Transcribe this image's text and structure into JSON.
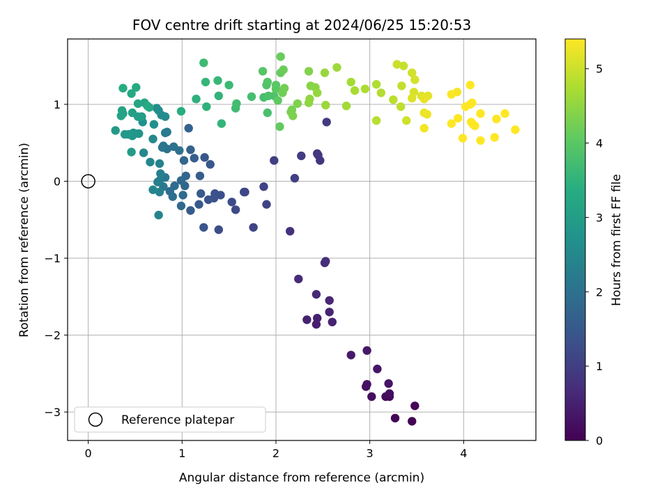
{
  "chart_data": {
    "type": "scatter",
    "title": "FOV centre drift starting at 2024/06/25 15:20:53",
    "xlabel": "Angular distance from reference (arcmin)",
    "ylabel": "Rotation from reference (arcmin)",
    "xlim": [
      -0.22,
      4.77
    ],
    "ylim": [
      -3.37,
      1.85
    ],
    "xticks": [
      0,
      1,
      2,
      3,
      4
    ],
    "xtick_labels": [
      "0",
      "1",
      "2",
      "3",
      "4"
    ],
    "yticks": [
      -3,
      -2,
      -1,
      0,
      1
    ],
    "ytick_labels": [
      "−3",
      "−2",
      "−1",
      "0",
      "1"
    ],
    "grid": true,
    "colormap": "viridis",
    "colorbar": {
      "label": "Hours from first FF file",
      "range": [
        0,
        5.4
      ],
      "ticks": [
        0,
        1,
        2,
        3,
        4,
        5
      ],
      "tick_labels": [
        "0",
        "1",
        "2",
        "3",
        "4",
        "5"
      ]
    },
    "legend": {
      "position": "lower-left",
      "entries": [
        "Reference platepar"
      ]
    },
    "reference_point": {
      "x": 0,
      "y": 0
    },
    "points": [
      [
        3.45,
        -3.12,
        0.02
      ],
      [
        3.27,
        -3.08,
        0.05
      ],
      [
        3.48,
        -2.92,
        0.09
      ],
      [
        3.17,
        -2.8,
        0.12
      ],
      [
        3.21,
        -2.8,
        0.15
      ],
      [
        3.02,
        -2.8,
        0.18
      ],
      [
        3.21,
        -2.76,
        0.21
      ],
      [
        2.96,
        -2.67,
        0.24
      ],
      [
        2.97,
        -2.64,
        0.27
      ],
      [
        3.2,
        -2.63,
        0.3
      ],
      [
        3.08,
        -2.44,
        0.33
      ],
      [
        2.97,
        -2.2,
        0.36
      ],
      [
        2.8,
        -2.26,
        0.39
      ],
      [
        2.43,
        -1.86,
        0.45
      ],
      [
        2.44,
        -1.78,
        0.48
      ],
      [
        2.33,
        -1.8,
        0.51
      ],
      [
        2.6,
        -1.83,
        0.54
      ],
      [
        2.57,
        -1.7,
        0.57
      ],
      [
        2.57,
        -1.55,
        0.6
      ],
      [
        2.43,
        -1.47,
        0.63
      ],
      [
        2.24,
        -1.27,
        0.66
      ],
      [
        2.52,
        -1.06,
        0.69
      ],
      [
        2.53,
        -1.04,
        0.72
      ],
      [
        2.15,
        -0.65,
        0.78
      ],
      [
        2.47,
        0.27,
        0.84
      ],
      [
        2.44,
        0.36,
        0.87
      ],
      [
        2.45,
        0.34,
        0.9
      ],
      [
        2.54,
        0.77,
        0.93
      ],
      [
        2.27,
        0.33,
        0.96
      ],
      [
        1.98,
        0.27,
        1.0
      ],
      [
        2.2,
        0.04,
        1.03
      ],
      [
        1.9,
        -0.3,
        1.06
      ],
      [
        1.87,
        -0.07,
        1.09
      ],
      [
        1.76,
        -0.6,
        1.12
      ],
      [
        1.67,
        -0.14,
        1.15
      ],
      [
        1.66,
        -0.14,
        1.18
      ],
      [
        1.57,
        -0.37,
        1.21
      ],
      [
        1.53,
        -0.27,
        1.24
      ],
      [
        1.39,
        -0.63,
        1.27
      ],
      [
        1.41,
        -0.18,
        1.3
      ],
      [
        1.35,
        -0.16,
        1.33
      ],
      [
        1.34,
        -0.22,
        1.36
      ],
      [
        1.28,
        -0.24,
        1.39
      ],
      [
        1.23,
        -0.6,
        1.42
      ],
      [
        1.3,
        0.22,
        1.45
      ],
      [
        1.24,
        0.31,
        1.48
      ],
      [
        1.18,
        -0.3,
        1.51
      ],
      [
        1.2,
        -0.16,
        1.54
      ],
      [
        1.09,
        -0.38,
        1.57
      ],
      [
        1.19,
        0.07,
        1.6
      ],
      [
        1.13,
        0.3,
        1.63
      ],
      [
        1.09,
        0.41,
        1.66
      ],
      [
        1.07,
        0.69,
        1.69
      ],
      [
        1.04,
        0.07,
        1.72
      ],
      [
        1.03,
        -0.06,
        1.75
      ],
      [
        1.02,
        0.27,
        1.78
      ],
      [
        0.99,
        -0.32,
        1.81
      ],
      [
        0.99,
        0.01,
        1.84
      ],
      [
        1.01,
        -0.18,
        1.87
      ],
      [
        0.92,
        -0.06,
        1.9
      ],
      [
        0.87,
        -0.13,
        1.93
      ],
      [
        0.9,
        -0.2,
        1.96
      ],
      [
        0.97,
        0.4,
        1.99
      ],
      [
        0.91,
        0.45,
        2.02
      ],
      [
        0.84,
        0.42,
        2.05
      ],
      [
        0.8,
        0.46,
        2.08
      ],
      [
        0.79,
        0.44,
        2.11
      ],
      [
        0.82,
        0.05,
        2.14
      ],
      [
        0.8,
        -0.07,
        2.17
      ],
      [
        0.82,
        0.63,
        2.2
      ],
      [
        0.84,
        0.64,
        2.23
      ],
      [
        0.76,
        0.01,
        2.26
      ],
      [
        0.74,
        -0.01,
        2.29
      ],
      [
        0.77,
        0.1,
        2.32
      ],
      [
        0.76,
        -0.14,
        2.35
      ],
      [
        0.76,
        0.23,
        2.38
      ],
      [
        0.75,
        -0.44,
        2.41
      ],
      [
        0.69,
        -0.11,
        2.44
      ],
      [
        0.66,
        0.25,
        2.47
      ],
      [
        0.59,
        0.37,
        2.5
      ],
      [
        0.69,
        0.55,
        2.53
      ],
      [
        0.82,
        0.84,
        2.56
      ],
      [
        0.78,
        0.86,
        2.59
      ],
      [
        0.75,
        0.92,
        2.62
      ],
      [
        0.73,
        0.95,
        2.65
      ],
      [
        0.7,
        0.74,
        2.68
      ],
      [
        0.58,
        0.77,
        2.71
      ],
      [
        0.54,
        0.62,
        2.74
      ],
      [
        0.5,
        0.62,
        2.77
      ],
      [
        0.48,
        0.63,
        2.8
      ],
      [
        0.47,
        0.59,
        2.83
      ],
      [
        0.43,
        0.61,
        2.86
      ],
      [
        0.39,
        0.61,
        2.89
      ],
      [
        0.29,
        0.66,
        2.92
      ],
      [
        0.46,
        0.38,
        2.95
      ],
      [
        0.57,
        0.84,
        2.98
      ],
      [
        0.53,
        0.84,
        3.01
      ],
      [
        0.47,
        0.89,
        3.04
      ],
      [
        0.37,
        0.88,
        3.07
      ],
      [
        0.35,
        0.85,
        3.1
      ],
      [
        0.36,
        0.92,
        3.13
      ],
      [
        0.6,
        1.02,
        3.16
      ],
      [
        0.53,
        1.01,
        3.19
      ],
      [
        0.65,
        0.96,
        3.22
      ],
      [
        0.63,
        0.98,
        3.25
      ],
      [
        0.46,
        1.14,
        3.28
      ],
      [
        0.51,
        1.22,
        3.31
      ],
      [
        0.37,
        1.21,
        3.34
      ],
      [
        0.99,
        0.91,
        3.37
      ],
      [
        1.15,
        1.07,
        3.45
      ],
      [
        1.26,
        0.97,
        3.48
      ],
      [
        1.39,
        1.11,
        3.51
      ],
      [
        1.42,
        0.75,
        3.54
      ],
      [
        1.25,
        1.29,
        3.57
      ],
      [
        1.38,
        1.31,
        3.6
      ],
      [
        1.5,
        1.25,
        3.63
      ],
      [
        1.23,
        1.54,
        3.66
      ],
      [
        1.57,
        0.95,
        3.69
      ],
      [
        1.58,
        1.01,
        3.72
      ],
      [
        1.74,
        1.1,
        3.75
      ],
      [
        1.87,
        1.09,
        3.78
      ],
      [
        1.91,
        0.89,
        3.81
      ],
      [
        1.92,
        1.11,
        3.84
      ],
      [
        1.98,
        1.11,
        3.87
      ],
      [
        1.9,
        1.25,
        3.9
      ],
      [
        1.91,
        1.29,
        3.93
      ],
      [
        1.86,
        1.43,
        3.96
      ],
      [
        2.0,
        1.25,
        3.99
      ],
      [
        2.0,
        1.2,
        4.02
      ],
      [
        2.02,
        1.05,
        4.05
      ],
      [
        2.04,
        0.71,
        4.08
      ],
      [
        2.05,
        1.41,
        4.11
      ],
      [
        2.05,
        1.62,
        4.14
      ],
      [
        2.08,
        1.45,
        4.17
      ],
      [
        2.07,
        1.15,
        4.2
      ],
      [
        2.09,
        1.21,
        4.23
      ],
      [
        2.16,
        0.9,
        4.26
      ],
      [
        2.17,
        0.93,
        4.29
      ],
      [
        2.18,
        0.85,
        4.32
      ],
      [
        2.23,
        1.01,
        4.35
      ],
      [
        2.35,
        1.43,
        4.38
      ],
      [
        2.37,
        1.24,
        4.41
      ],
      [
        2.42,
        1.22,
        4.44
      ],
      [
        2.35,
        1.02,
        4.47
      ],
      [
        2.36,
        1.07,
        4.5
      ],
      [
        2.44,
        1.15,
        4.53
      ],
      [
        2.52,
        1.41,
        4.56
      ],
      [
        2.53,
        0.99,
        4.59
      ],
      [
        2.65,
        1.48,
        4.62
      ],
      [
        2.75,
        0.98,
        4.65
      ],
      [
        2.8,
        1.29,
        4.68
      ],
      [
        2.84,
        1.18,
        4.71
      ],
      [
        2.95,
        1.2,
        4.74
      ],
      [
        3.07,
        1.26,
        4.77
      ],
      [
        3.12,
        1.15,
        4.8
      ],
      [
        3.07,
        0.79,
        4.83
      ],
      [
        3.25,
        1.06,
        4.86
      ],
      [
        3.33,
        0.97,
        4.89
      ],
      [
        3.34,
        1.24,
        4.92
      ],
      [
        3.36,
        1.5,
        4.95
      ],
      [
        3.29,
        1.52,
        4.98
      ],
      [
        3.39,
        0.79,
        5.01
      ],
      [
        3.45,
        1.41,
        5.04
      ],
      [
        3.48,
        1.32,
        5.07
      ],
      [
        3.47,
        1.16,
        5.1
      ],
      [
        3.45,
        1.08,
        5.13
      ],
      [
        3.55,
        1.11,
        5.16
      ],
      [
        3.62,
        1.11,
        5.19
      ],
      [
        3.58,
        1.07,
        5.22
      ],
      [
        3.58,
        0.89,
        5.25
      ],
      [
        3.61,
        0.87,
        5.28
      ],
      [
        3.58,
        0.69,
        5.31
      ],
      [
        3.93,
        1.16,
        5.34
      ],
      [
        3.87,
        1.13,
        5.37
      ],
      [
        3.87,
        0.75,
        5.4
      ],
      [
        3.94,
        0.82,
        5.4
      ],
      [
        3.99,
        0.56,
        5.4
      ],
      [
        4.02,
        0.97,
        5.4
      ],
      [
        4.07,
        1.0,
        5.4
      ],
      [
        4.09,
        1.02,
        5.4
      ],
      [
        4.07,
        1.25,
        5.4
      ],
      [
        4.08,
        0.77,
        5.4
      ],
      [
        4.12,
        0.72,
        5.4
      ],
      [
        4.1,
        0.74,
        5.4
      ],
      [
        4.18,
        0.88,
        5.4
      ],
      [
        4.18,
        0.53,
        5.4
      ],
      [
        4.33,
        0.57,
        5.4
      ],
      [
        4.35,
        0.81,
        5.4
      ],
      [
        4.44,
        0.88,
        5.4
      ],
      [
        4.55,
        0.67,
        5.4
      ]
    ]
  }
}
